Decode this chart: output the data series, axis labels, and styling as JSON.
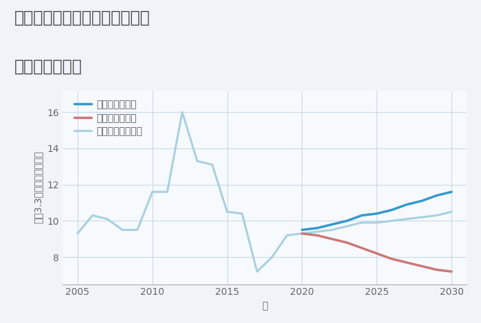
{
  "title_line1": "三重県四日市市楠町北五味塚の",
  "title_line2": "土地の価格推移",
  "xlabel": "年",
  "ylabel": "平（3.3㎡）単価（万円）",
  "background_color": "#f0f4f8",
  "plot_bg_color": "#f7fafd",
  "grid_color": "#c8d8e8",
  "normal_scenario": {
    "years": [
      2005,
      2006,
      2007,
      2008,
      2009,
      2010,
      2011,
      2012,
      2013,
      2014,
      2015,
      2016,
      2017,
      2018,
      2019,
      2020,
      2021,
      2022,
      2023,
      2024,
      2025,
      2026,
      2027,
      2028,
      2029,
      2030
    ],
    "values": [
      9.3,
      10.3,
      10.1,
      9.5,
      9.5,
      11.6,
      11.6,
      16.0,
      13.3,
      13.1,
      10.5,
      10.4,
      7.2,
      8.0,
      9.2,
      9.3,
      9.4,
      9.5,
      9.7,
      9.9,
      9.9,
      10.0,
      10.1,
      10.2,
      10.3,
      10.5
    ],
    "color": "#a8d0e0",
    "label": "ノーマルシナリオ",
    "linewidth": 2.2
  },
  "good_scenario": {
    "years": [
      2020,
      2021,
      2022,
      2023,
      2024,
      2025,
      2026,
      2027,
      2028,
      2029,
      2030
    ],
    "values": [
      9.5,
      9.6,
      9.8,
      10.0,
      10.3,
      10.4,
      10.6,
      10.9,
      11.1,
      11.4,
      11.6
    ],
    "color": "#3399cc",
    "label": "グッドシナリオ",
    "linewidth": 2.5
  },
  "bad_scenario": {
    "years": [
      2020,
      2021,
      2022,
      2023,
      2024,
      2025,
      2026,
      2027,
      2028,
      2029,
      2030
    ],
    "values": [
      9.3,
      9.2,
      9.0,
      8.8,
      8.5,
      8.2,
      7.9,
      7.7,
      7.5,
      7.3,
      7.2
    ],
    "color": "#cc7777",
    "label": "バッドシナリオ",
    "linewidth": 2.5
  },
  "ylim": [
    6.5,
    17.2
  ],
  "yticks": [
    8,
    10,
    12,
    14,
    16
  ],
  "xlim": [
    2004,
    2031
  ],
  "xticks": [
    2005,
    2010,
    2015,
    2020,
    2025,
    2030
  ],
  "title_fontsize": 17,
  "label_fontsize": 10,
  "tick_fontsize": 10,
  "legend_fontsize": 10
}
